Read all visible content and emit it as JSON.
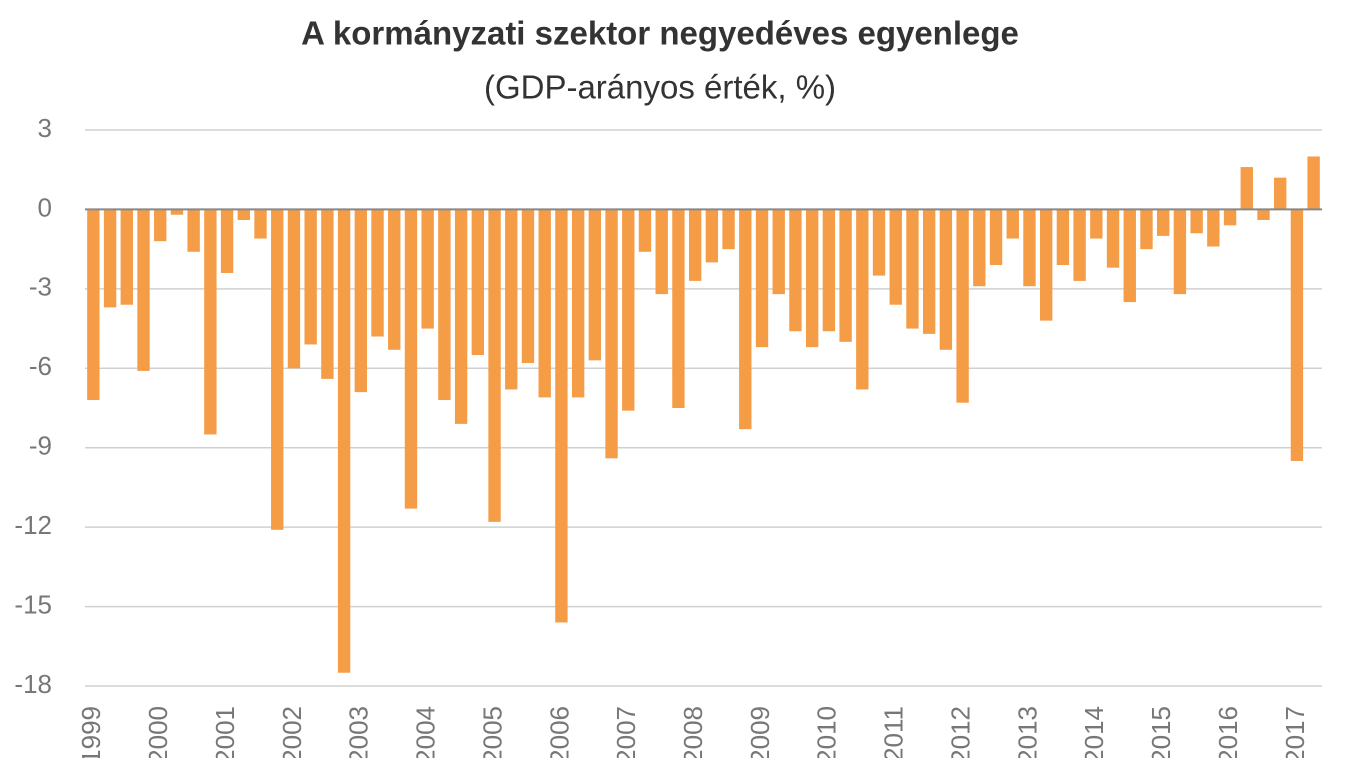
{
  "chart_data": {
    "type": "bar",
    "title": "A kormányzati szektor negyedéves egyenlege",
    "subtitle": "(GDP-arányos érték, %)",
    "categories": [
      "1999",
      null,
      null,
      null,
      "2000",
      null,
      null,
      null,
      "2001",
      null,
      null,
      null,
      "2002",
      null,
      null,
      null,
      "2003",
      null,
      null,
      null,
      "2004",
      null,
      null,
      null,
      "2005",
      null,
      null,
      null,
      "2006",
      null,
      null,
      null,
      "2007",
      null,
      null,
      null,
      "2008",
      null,
      null,
      null,
      "2009",
      null,
      null,
      null,
      "2010",
      null,
      null,
      null,
      "2011",
      null,
      null,
      null,
      "2012",
      null,
      null,
      null,
      "2013",
      null,
      null,
      null,
      "2014",
      null,
      null,
      null,
      "2015",
      null,
      null,
      null,
      "2016",
      null,
      null,
      null,
      "2017",
      null
    ],
    "values": [
      -7.2,
      -3.7,
      -3.6,
      -6.1,
      -1.2,
      -0.2,
      -1.6,
      -8.5,
      -2.4,
      -0.4,
      -1.1,
      -12.1,
      -6.0,
      -5.1,
      -6.4,
      -17.5,
      -6.9,
      -4.8,
      -5.3,
      -11.3,
      -4.5,
      -7.2,
      -8.1,
      -5.5,
      -11.8,
      -6.8,
      -5.8,
      -7.1,
      -15.6,
      -7.1,
      -5.7,
      -9.4,
      -7.6,
      -1.6,
      -3.2,
      -7.5,
      -2.7,
      -2.0,
      -1.5,
      -8.3,
      -5.2,
      -3.2,
      -4.6,
      -5.2,
      -4.6,
      -5.0,
      -6.8,
      -2.5,
      -3.6,
      -4.5,
      -4.7,
      -5.3,
      -7.3,
      -2.9,
      -2.1,
      -1.1,
      -2.9,
      -4.2,
      -2.1,
      -2.7,
      -1.1,
      -2.2,
      -3.5,
      -1.5,
      -1.0,
      -3.2,
      -0.9,
      -1.4,
      -0.6,
      1.6,
      -0.4,
      1.2,
      -9.5,
      2.0
    ],
    "color": "#f59c47",
    "ylim": [
      -18,
      3
    ],
    "yticks": [
      -18,
      -15,
      -12,
      -9,
      -6,
      -3,
      0,
      3
    ],
    "grid": true
  }
}
